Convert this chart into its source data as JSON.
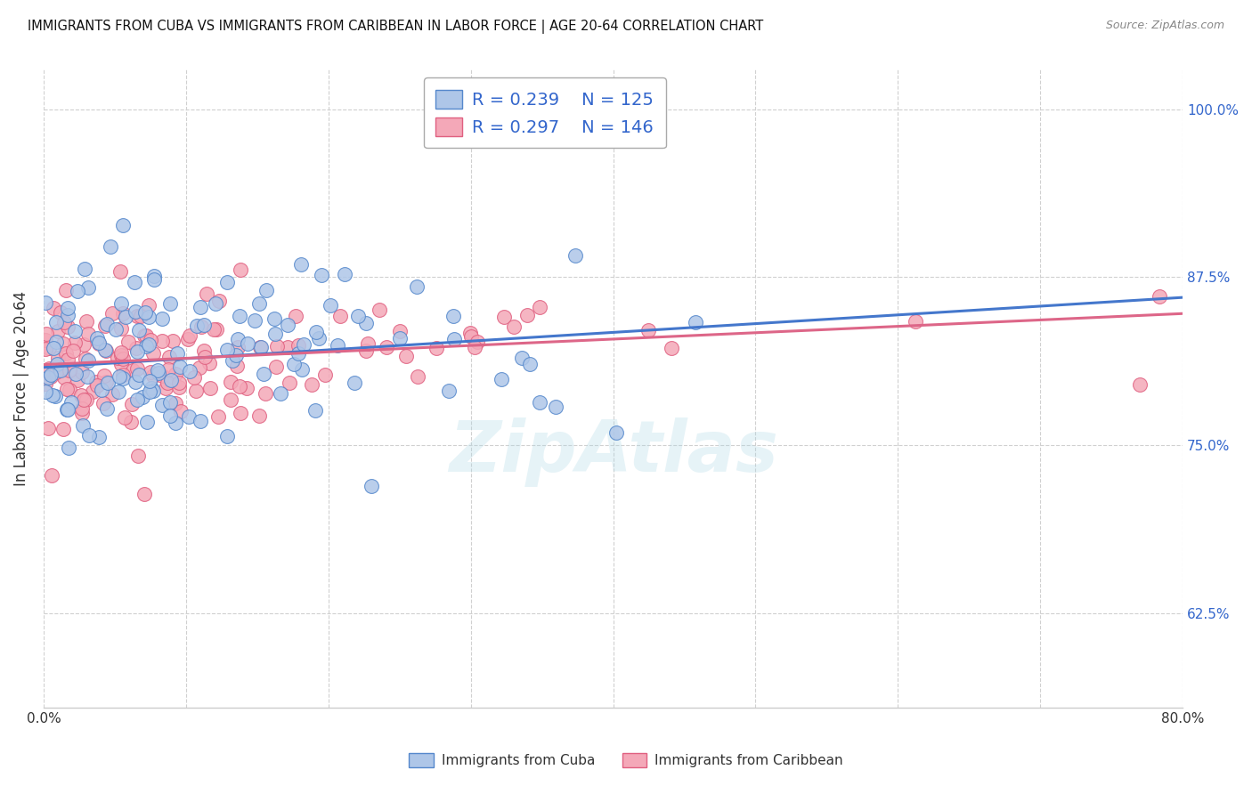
{
  "title": "IMMIGRANTS FROM CUBA VS IMMIGRANTS FROM CARIBBEAN IN LABOR FORCE | AGE 20-64 CORRELATION CHART",
  "source": "Source: ZipAtlas.com",
  "ylabel": "In Labor Force | Age 20-64",
  "ytick_values": [
    0.625,
    0.75,
    0.875,
    1.0
  ],
  "xlim": [
    0.0,
    0.8
  ],
  "ylim": [
    0.555,
    1.03
  ],
  "legend_cuba_R": "R = 0.239",
  "legend_cuba_N": "N = 125",
  "legend_carib_R": "R = 0.297",
  "legend_carib_N": "N = 146",
  "cuba_color": "#aec6e8",
  "cuba_edge_color": "#5588cc",
  "carib_color": "#f4a8b8",
  "carib_edge_color": "#e06080",
  "cuba_line_color": "#4477cc",
  "carib_line_color": "#dd6688",
  "watermark": "ZipAtlas",
  "legend_text_color": "#3366cc"
}
